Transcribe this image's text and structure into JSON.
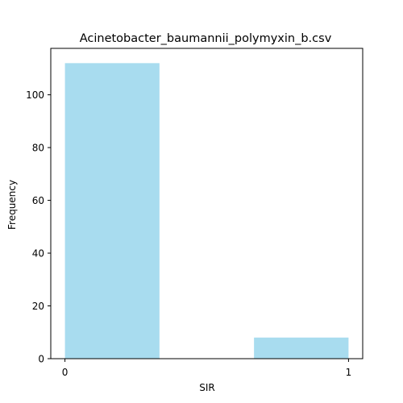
{
  "chart_data": {
    "type": "bar",
    "title": "Acinetobacter_baumannii_polymyxin_b.csv",
    "xlabel": "SIR",
    "ylabel": "Frequency",
    "bins": [
      {
        "x0": 0.0,
        "x1": 0.3333,
        "value": 112
      },
      {
        "x0": 0.6667,
        "x1": 1.0,
        "value": 8
      }
    ],
    "xlim": [
      -0.05,
      1.05
    ],
    "ylim": [
      0,
      117.6
    ],
    "xticks": [
      0,
      1
    ],
    "yticks": [
      0,
      20,
      40,
      60,
      80,
      100
    ],
    "bar_color": "#a8dcef",
    "grid": false,
    "legend": "none"
  }
}
